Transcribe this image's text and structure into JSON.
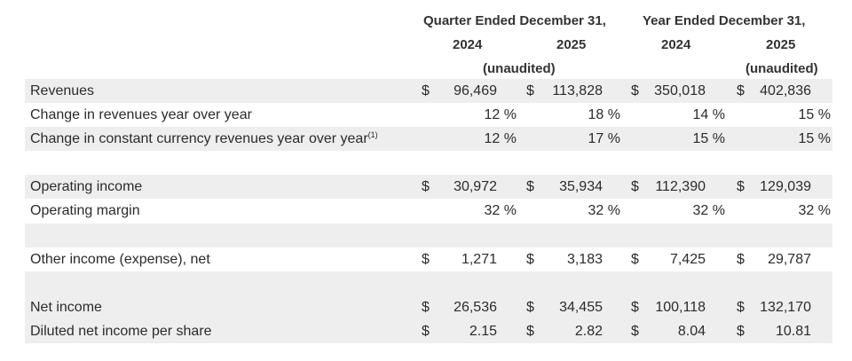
{
  "header": {
    "quarter_title": "Quarter Ended December 31,",
    "year_title": "Year Ended December 31,",
    "col_2024_q": "2024",
    "col_2025_q": "2025",
    "col_2024_y": "2024",
    "col_2025_y": "2025",
    "unaudited_q": "(unaudited)",
    "unaudited_y": "(unaudited)"
  },
  "rows": [
    {
      "label": "Revenues",
      "sup": "",
      "d1": "$",
      "v1": "96,469",
      "d2": "$",
      "v2": "113,828",
      "d3": "$",
      "v3": "350,018",
      "d4": "$",
      "v4": "402,836"
    },
    {
      "label": "Change in revenues year over year",
      "sup": "",
      "d1": "",
      "v1": "12 %",
      "d2": "",
      "v2": "18 %",
      "d3": "",
      "v3": "14 %",
      "d4": "",
      "v4": "15 %"
    },
    {
      "label": "Change in constant currency revenues year over year",
      "sup": "(1)",
      "d1": "",
      "v1": "12 %",
      "d2": "",
      "v2": "17 %",
      "d3": "",
      "v3": "15 %",
      "d4": "",
      "v4": "15 %"
    },
    {
      "label": "Operating income",
      "sup": "",
      "d1": "$",
      "v1": "30,972",
      "d2": "$",
      "v2": "35,934",
      "d3": "$",
      "v3": "112,390",
      "d4": "$",
      "v4": "129,039"
    },
    {
      "label": "Operating margin",
      "sup": "",
      "d1": "",
      "v1": "32 %",
      "d2": "",
      "v2": "32 %",
      "d3": "",
      "v3": "32 %",
      "d4": "",
      "v4": "32 %"
    },
    {
      "label": "Other income (expense), net",
      "sup": "",
      "d1": "$",
      "v1": "1,271",
      "d2": "$",
      "v2": "3,183",
      "d3": "$",
      "v3": "7,425",
      "d4": "$",
      "v4": "29,787"
    },
    {
      "label": "Net income",
      "sup": "",
      "d1": "$",
      "v1": "26,536",
      "d2": "$",
      "v2": "34,455",
      "d3": "$",
      "v3": "100,118",
      "d4": "$",
      "v4": "132,170"
    },
    {
      "label": "Diluted net income per share",
      "sup": "",
      "d1": "$",
      "v1": "2.15",
      "d2": "$",
      "v2": "2.82",
      "d3": "$",
      "v3": "8.04",
      "d4": "$",
      "v4": "10.81"
    }
  ]
}
